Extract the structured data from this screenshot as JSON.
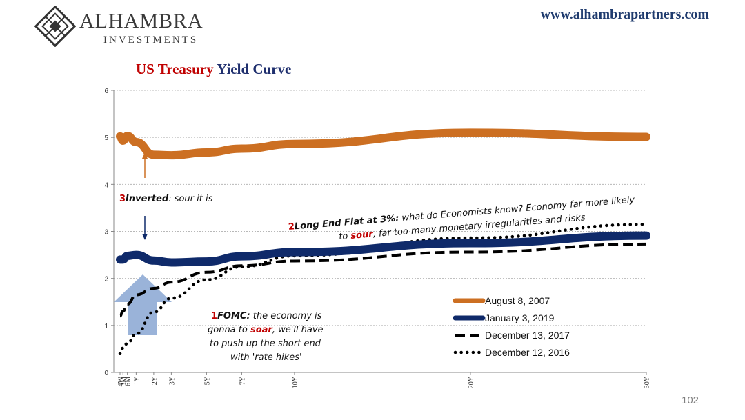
{
  "brand": {
    "name": "ALHAMBRA",
    "sub": "INVESTMENTS",
    "website": "www.alhambrapartners.com"
  },
  "page_number": "102",
  "colors": {
    "aug2007": "#cc6f22",
    "jan2019": "#0f2a6a",
    "dec2017": "#000000",
    "dec2016": "#000000",
    "arrow_up": "#9ab3d9",
    "small_arrow_orange": "#cc6f22",
    "small_arrow_navy": "#0f2a6a",
    "annotation_red": "#c00000"
  },
  "annotations": {
    "a1_num": "1",
    "a1_kw": "FOMC:",
    "a1_line1": " the economy is",
    "a1_line2a": "gonna to ",
    "a1_line2b": "soar",
    "a1_line2c": ", we'll have",
    "a1_line3": "to push up the short end",
    "a1_line4": "with 'rate hikes'",
    "a2_num": "2",
    "a2_kw": "Long End Flat at 3%:",
    "a2_line1": " what do Economists know? Economy far more likely",
    "a2_line2a": "to ",
    "a2_line2b": "sour",
    "a2_line2c": ", far too many monetary irregularities and risks",
    "a3_num": "3",
    "a3_kw": "Inverted",
    "a3_rest": ": sour it is"
  },
  "chart_data": {
    "type": "line",
    "title_part1": "US Treasury",
    "title_part2": " Yield Curve",
    "xlabel": "",
    "ylabel": "",
    "ylim": [
      0,
      6
    ],
    "yticks": [
      "0",
      "1",
      "2",
      "3",
      "4",
      "5",
      "6"
    ],
    "x_categories": [
      "4W",
      "3M",
      "6M",
      "1Y",
      "2Y",
      "3Y",
      "5Y",
      "7Y",
      "10Y",
      "20Y",
      "30Y"
    ],
    "x_months": [
      1,
      3,
      6,
      12,
      24,
      36,
      60,
      84,
      120,
      240,
      360
    ],
    "grid": true,
    "legend_position": "bottom-right",
    "series": [
      {
        "name": "August 8, 2007",
        "style": "solid-thick",
        "colorKey": "aug2007",
        "values": [
          5.02,
          4.93,
          5.03,
          4.9,
          4.63,
          4.62,
          4.68,
          4.76,
          4.86,
          5.1,
          5.01
        ]
      },
      {
        "name": "January 3, 2019",
        "style": "solid-thick",
        "colorKey": "jan2019",
        "values": [
          2.4,
          2.4,
          2.48,
          2.5,
          2.38,
          2.34,
          2.36,
          2.47,
          2.56,
          2.75,
          2.91
        ]
      },
      {
        "name": "December 13, 2017",
        "style": "dashed",
        "colorKey": "dec2017",
        "values": [
          1.2,
          1.3,
          1.45,
          1.65,
          1.79,
          1.92,
          2.13,
          2.27,
          2.37,
          2.56,
          2.73
        ]
      },
      {
        "name": "December 12, 2016",
        "style": "dotted",
        "colorKey": "dec2016",
        "values": [
          0.4,
          0.52,
          0.62,
          0.82,
          1.28,
          1.58,
          1.97,
          2.25,
          2.48,
          2.86,
          3.15
        ]
      }
    ]
  }
}
